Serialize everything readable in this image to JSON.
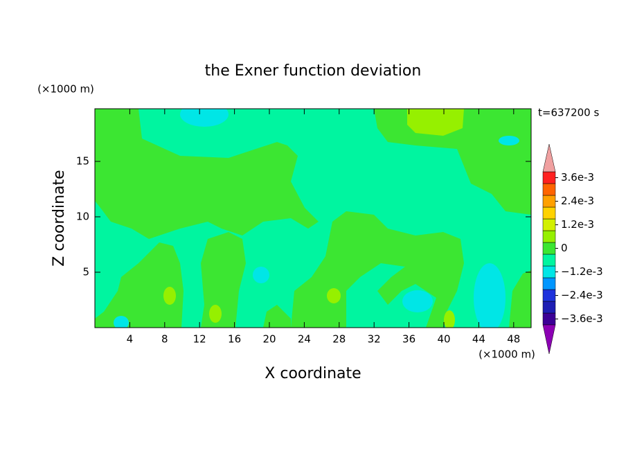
{
  "chart_data": {
    "type": "contour",
    "title": "the Exner function deviation",
    "x_label": "X coordinate",
    "y_label": "Z coordinate",
    "x_unit": "(×1000 m)",
    "y_unit": "(×1000 m)",
    "time_label": "t=637200 s",
    "xlim": [
      0,
      50
    ],
    "xticks": [
      4,
      8,
      12,
      16,
      20,
      24,
      28,
      32,
      36,
      40,
      44,
      48
    ],
    "ylim": [
      0,
      19.75
    ],
    "yticks": [
      5,
      10,
      15
    ],
    "colorbar": {
      "values": [
        -0.0036,
        -0.003,
        -0.0024,
        -0.0018,
        -0.0012,
        -0.0006,
        0,
        0.0006,
        0.0012,
        0.0018,
        0.0024,
        0.003,
        0.0036
      ],
      "colors": [
        "#3c0096",
        "#1e1eb4",
        "#1e32dc",
        "#0096ff",
        "#00e6e6",
        "#00f5a0",
        "#3ce632",
        "#96f000",
        "#d2f000",
        "#ffd200",
        "#ffa000",
        "#ff6400",
        "#ff2020"
      ],
      "under_color": "#8c00b4",
      "over_color": "#f0a0a0",
      "ticks": [
        {
          "value": 0.0036,
          "label": "3.6e-3"
        },
        {
          "value": 0.0024,
          "label": "2.4e-3"
        },
        {
          "value": 0.0012,
          "label": "1.2e-3"
        },
        0,
        {
          "value": -0.0012,
          "label": "−1.2e-3"
        },
        {
          "value": -0.0024,
          "label": "−2.4e-3"
        },
        {
          "value": -0.0036,
          "label": "−3.6e-3"
        }
      ]
    }
  }
}
